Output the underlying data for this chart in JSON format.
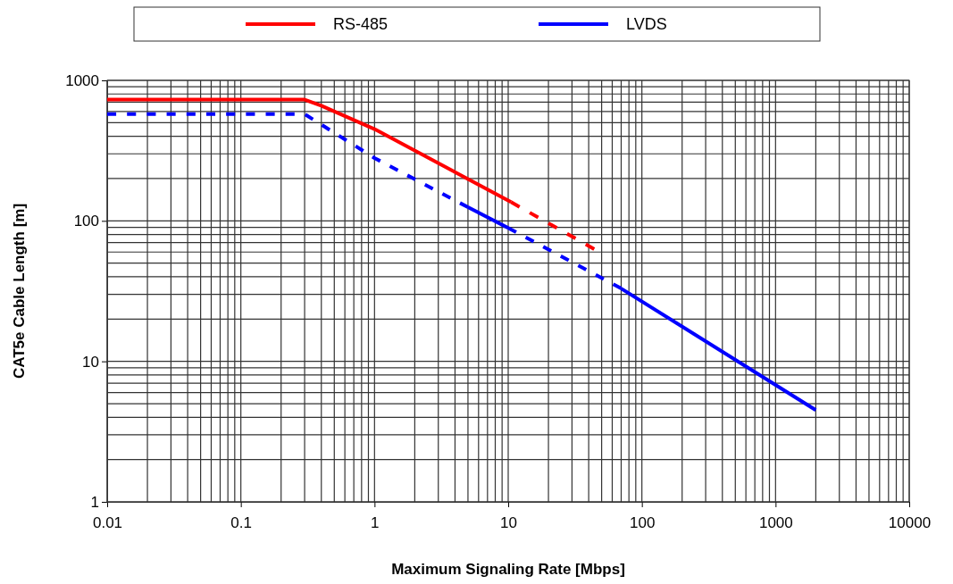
{
  "chart_data": {
    "type": "line",
    "xlabel": "Maximum Signaling Rate [Mbps]",
    "ylabel": "CAT5e Cable Length [m]",
    "log": "xy",
    "grid": true,
    "legend": "top",
    "xlim": [
      0.01,
      10000
    ],
    "ylim": [
      1,
      1000
    ],
    "xticks": [
      0.01,
      0.1,
      1,
      10,
      100,
      1000,
      10000
    ],
    "yticks": [
      1,
      10,
      100,
      1000
    ],
    "series": [
      {
        "name": "RS-485",
        "color": "#ff0000",
        "line_style": "solid",
        "x": [
          0.01,
          0.3,
          0.4,
          1,
          10.5
        ],
        "values": [
          730,
          730,
          660,
          450,
          136
        ]
      },
      {
        "color": "#ff0000",
        "line_style": "dashed",
        "x": [
          10.5,
          44
        ],
        "values": [
          136,
          63
        ]
      },
      {
        "color": "#0000ff",
        "line_style": "dashed",
        "x": [
          0.01,
          0.3,
          1,
          5
        ],
        "values": [
          575,
          575,
          280,
          125
        ]
      },
      {
        "name": "LVDS",
        "color": "#0000ff",
        "line_style": "solid",
        "x": [
          5,
          10
        ],
        "values": [
          125,
          89
        ]
      },
      {
        "color": "#0000ff",
        "line_style": "dashed",
        "x": [
          10,
          70
        ],
        "values": [
          89,
          33
        ]
      },
      {
        "color": "#0000ff",
        "line_style": "solid",
        "x": [
          70,
          2000
        ],
        "values": [
          33,
          4.5
        ]
      }
    ]
  }
}
